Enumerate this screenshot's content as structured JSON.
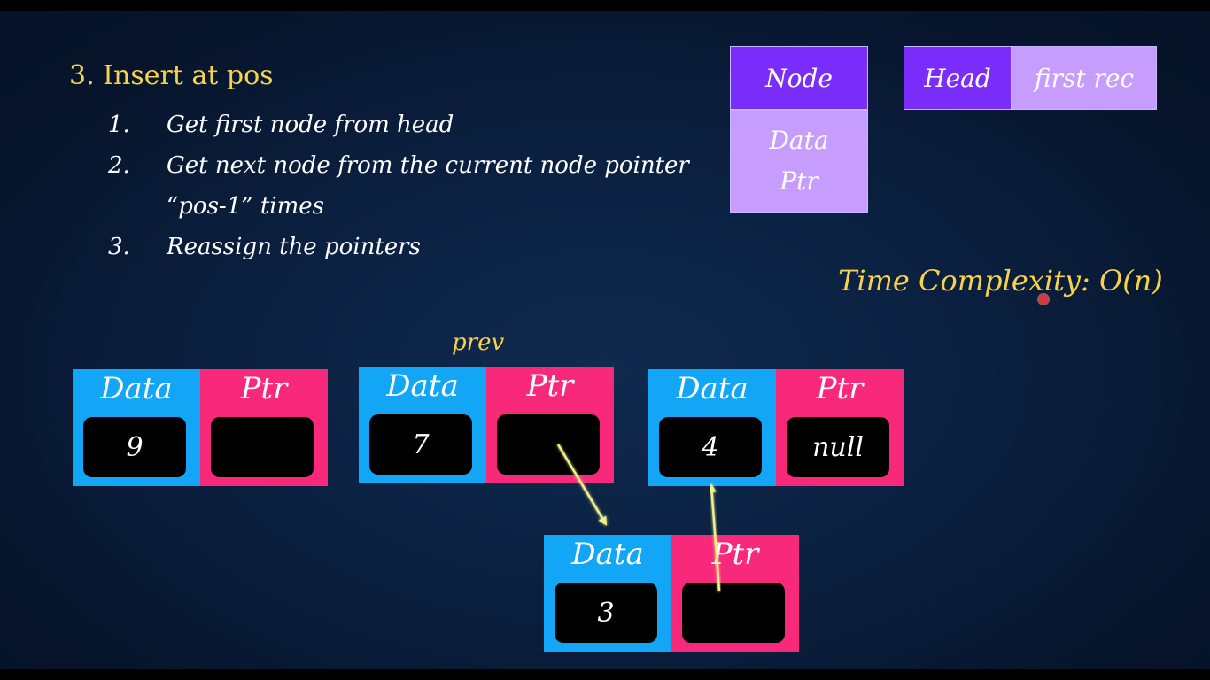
{
  "title": "3. Insert at pos",
  "steps": [
    {
      "num": "1.",
      "text": "Get first node from head"
    },
    {
      "num": "2.",
      "text": "Get next node from the current node pointer"
    },
    {
      "num": "",
      "text": "“pos-1” times"
    },
    {
      "num": "3.",
      "text": "Reassign the pointers"
    }
  ],
  "legend": {
    "node_label": "Node",
    "node_fields": [
      "Data",
      "Ptr"
    ],
    "head_label": "Head",
    "head_value": "first rec"
  },
  "time_complexity": "Time Complexity: O(n)",
  "prev_label": "prev",
  "nodes": [
    {
      "data_header": "Data",
      "ptr_header": "Ptr",
      "data": "9",
      "ptr": ""
    },
    {
      "data_header": "Data",
      "ptr_header": "Ptr",
      "data": "7",
      "ptr": ""
    },
    {
      "data_header": "Data",
      "ptr_header": "Ptr",
      "data": "4",
      "ptr": "null"
    },
    {
      "data_header": "Data",
      "ptr_header": "Ptr",
      "data": "3",
      "ptr": ""
    }
  ],
  "colors": {
    "data_cell": "#13a6f6",
    "ptr_cell": "#f8287a",
    "accent_yellow": "#f7d24b",
    "arrow": "#f2f08a"
  }
}
